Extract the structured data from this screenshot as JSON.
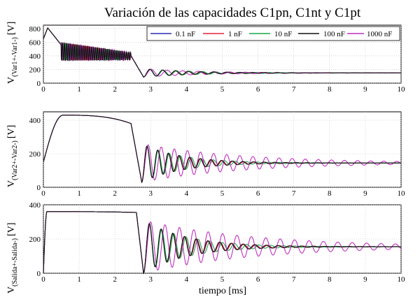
{
  "figure": {
    "title": "Variación de las capacidades C1pn, C1nt y C1pt",
    "xlabel": "tiempo [ms]"
  },
  "colors": {
    "series": [
      "#2b2bb5",
      "#e0203a",
      "#1aa64b",
      "#111111",
      "#c02ec0"
    ]
  },
  "chart_data": [
    {
      "type": "line",
      "id": "panel1",
      "ylabel_main": "V",
      "ylabel_sub": "(Var1+-Var1-)",
      "ylabel_unit": "[V]",
      "xlim": [
        0,
        10
      ],
      "ylim": [
        0,
        850
      ],
      "xticks": [
        0,
        1,
        2,
        3,
        4,
        5,
        6,
        7,
        8,
        9,
        10
      ],
      "yticks": [
        0,
        200,
        400,
        600,
        800
      ],
      "grid": true,
      "legend_position": "top-right",
      "series": [
        {
          "name": "0.1 nF",
          "color": "#2b2bb5"
        },
        {
          "name": "1 nF",
          "color": "#e0203a"
        },
        {
          "name": "10 nF",
          "color": "#1aa64b"
        },
        {
          "name": "100 nF",
          "color": "#111111"
        },
        {
          "name": "1000 nF",
          "color": "#c02ec0"
        }
      ],
      "shape": {
        "start": 650,
        "peak": 810,
        "peak_t": 0.12,
        "plateau_start": 0.5,
        "plateau_hi": 600,
        "plateau_lo": 330,
        "plateau_end": 2.45,
        "plateau_hi_end": 450,
        "plateau_lo_end": 340,
        "drop_t": 2.6,
        "dip": 90,
        "dip_t": 2.8,
        "final": 150,
        "osc_amp": 70,
        "osc_period": 0.36,
        "decay": 1.4
      }
    },
    {
      "type": "line",
      "id": "panel2",
      "ylabel_main": "V",
      "ylabel_sub": "(Var2+-Var2-)",
      "ylabel_unit": "[V]",
      "xlim": [
        0,
        10
      ],
      "ylim": [
        0,
        450
      ],
      "xticks": [
        0,
        1,
        2,
        3,
        4,
        5,
        6,
        7,
        8,
        9,
        10
      ],
      "yticks": [
        0,
        200,
        400
      ],
      "grid": true,
      "shape": {
        "start": 150,
        "peak": 430,
        "peak_t": 0.55,
        "plateau_end": 2.45,
        "plateau_val_end": 380,
        "drop_t": 2.6,
        "dip": 30,
        "dip_t": 2.75,
        "final": 145,
        "osc_amp": 90,
        "osc_period": 0.3,
        "decay": 1.1
      }
    },
    {
      "type": "line",
      "id": "panel3",
      "ylabel_main": "V",
      "ylabel_sub": "(Salida+-Salida-)",
      "ylabel_unit": "[V]",
      "xlim": [
        0,
        10
      ],
      "ylim": [
        0,
        400
      ],
      "xticks": [
        0,
        1,
        2,
        3,
        4,
        5,
        6,
        7,
        8,
        9,
        10
      ],
      "yticks": [
        0,
        200,
        400
      ],
      "grid": true,
      "shape": {
        "start": 0,
        "peak": 360,
        "peak_t": 0.1,
        "plateau_end": 2.6,
        "plateau_val_end": 355,
        "drop_t": 2.7,
        "dip": 0,
        "dip_t": 2.8,
        "final": 155,
        "osc_amp": 140,
        "osc_period": 0.33,
        "decay": 1.2
      }
    }
  ]
}
